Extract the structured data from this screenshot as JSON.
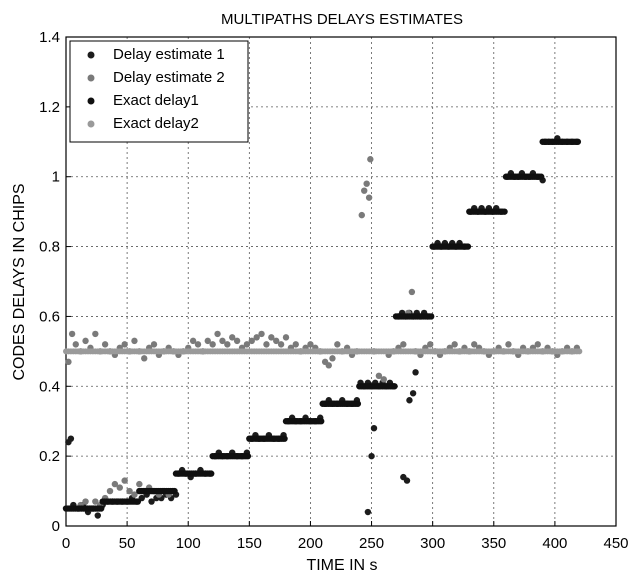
{
  "chart_data": {
    "type": "scatter",
    "title": "MULTIPATHS DELAYS ESTIMATES",
    "xlabel": "TIME IN  s",
    "ylabel": "CODES DELAYS IN CHIPS",
    "xlim": [
      0,
      450
    ],
    "ylim": [
      0,
      1.4
    ],
    "xticks": [
      0,
      50,
      100,
      150,
      200,
      250,
      300,
      350,
      400,
      450
    ],
    "xtick_labels": [
      "0",
      "50",
      "100",
      "150",
      "200",
      "250",
      "300",
      "350",
      "400",
      "450"
    ],
    "yticks": [
      0,
      0.2,
      0.4,
      0.6,
      0.8,
      1.0,
      1.2,
      1.4
    ],
    "ytick_labels": [
      "0",
      "0.2",
      "0.4",
      "0.6",
      "0.8",
      "1",
      "1.2",
      "1.4"
    ],
    "grid": true,
    "legend_position": "top-left",
    "series": [
      {
        "name": "Delay estimate 1",
        "color": "#1c1c1c",
        "points": [
          [
            2,
            0.24
          ],
          [
            4,
            0.25
          ],
          [
            6,
            0.06
          ],
          [
            10,
            0.05
          ],
          [
            14,
            0.06
          ],
          [
            18,
            0.04
          ],
          [
            22,
            0.05
          ],
          [
            26,
            0.03
          ],
          [
            30,
            0.06
          ],
          [
            34,
            0.07
          ],
          [
            38,
            0.07
          ],
          [
            42,
            0.07
          ],
          [
            46,
            0.07
          ],
          [
            50,
            0.07
          ],
          [
            54,
            0.08
          ],
          [
            58,
            0.07
          ],
          [
            62,
            0.08
          ],
          [
            66,
            0.09
          ],
          [
            70,
            0.07
          ],
          [
            74,
            0.08
          ],
          [
            78,
            0.08
          ],
          [
            82,
            0.09
          ],
          [
            86,
            0.08
          ],
          [
            90,
            0.09
          ],
          [
            92,
            0.15
          ],
          [
            95,
            0.16
          ],
          [
            98,
            0.15
          ],
          [
            102,
            0.14
          ],
          [
            106,
            0.15
          ],
          [
            110,
            0.16
          ],
          [
            114,
            0.15
          ],
          [
            118,
            0.15
          ],
          [
            122,
            0.2
          ],
          [
            125,
            0.21
          ],
          [
            128,
            0.2
          ],
          [
            132,
            0.2
          ],
          [
            136,
            0.21
          ],
          [
            140,
            0.2
          ],
          [
            144,
            0.2
          ],
          [
            148,
            0.21
          ],
          [
            152,
            0.25
          ],
          [
            155,
            0.26
          ],
          [
            158,
            0.25
          ],
          [
            162,
            0.25
          ],
          [
            166,
            0.26
          ],
          [
            170,
            0.25
          ],
          [
            174,
            0.25
          ],
          [
            178,
            0.26
          ],
          [
            182,
            0.3
          ],
          [
            185,
            0.31
          ],
          [
            188,
            0.3
          ],
          [
            192,
            0.3
          ],
          [
            196,
            0.31
          ],
          [
            200,
            0.3
          ],
          [
            204,
            0.3
          ],
          [
            208,
            0.31
          ],
          [
            212,
            0.35
          ],
          [
            215,
            0.36
          ],
          [
            218,
            0.35
          ],
          [
            222,
            0.35
          ],
          [
            226,
            0.36
          ],
          [
            230,
            0.35
          ],
          [
            234,
            0.35
          ],
          [
            238,
            0.36
          ],
          [
            241,
            0.41
          ],
          [
            244,
            0.4
          ],
          [
            247,
            0.41
          ],
          [
            250,
            0.4
          ],
          [
            253,
            0.41
          ],
          [
            256,
            0.4
          ],
          [
            259,
            0.41
          ],
          [
            262,
            0.4
          ],
          [
            265,
            0.41
          ],
          [
            268,
            0.4
          ],
          [
            272,
            0.6
          ],
          [
            275,
            0.61
          ],
          [
            278,
            0.6
          ],
          [
            281,
            0.61
          ],
          [
            284,
            0.6
          ],
          [
            287,
            0.61
          ],
          [
            290,
            0.6
          ],
          [
            293,
            0.61
          ],
          [
            296,
            0.6
          ],
          [
            301,
            0.8
          ],
          [
            304,
            0.81
          ],
          [
            307,
            0.8
          ],
          [
            310,
            0.81
          ],
          [
            313,
            0.8
          ],
          [
            316,
            0.81
          ],
          [
            319,
            0.8
          ],
          [
            322,
            0.81
          ],
          [
            326,
            0.8
          ],
          [
            331,
            0.9
          ],
          [
            334,
            0.91
          ],
          [
            337,
            0.9
          ],
          [
            340,
            0.91
          ],
          [
            343,
            0.9
          ],
          [
            346,
            0.91
          ],
          [
            349,
            0.9
          ],
          [
            352,
            0.91
          ],
          [
            356,
            0.9
          ],
          [
            361,
            1.0
          ],
          [
            364,
            1.01
          ],
          [
            367,
            1.0
          ],
          [
            370,
            1.0
          ],
          [
            373,
            1.01
          ],
          [
            376,
            1.0
          ],
          [
            379,
            1.0
          ],
          [
            382,
            1.01
          ],
          [
            386,
            1.0
          ],
          [
            390,
            0.99
          ],
          [
            392,
            1.1
          ],
          [
            395,
            1.1
          ],
          [
            398,
            1.1
          ],
          [
            402,
            1.11
          ],
          [
            406,
            1.1
          ],
          [
            410,
            1.1
          ],
          [
            414,
            1.1
          ],
          [
            418,
            1.1
          ],
          [
            247,
            0.04
          ],
          [
            250,
            0.2
          ],
          [
            252,
            0.28
          ],
          [
            276,
            0.14
          ],
          [
            279,
            0.13
          ],
          [
            281,
            0.36
          ],
          [
            284,
            0.38
          ],
          [
            286,
            0.44
          ]
        ]
      },
      {
        "name": "Delay estimate 2",
        "color": "#7a7a7a",
        "points": [
          [
            2,
            0.47
          ],
          [
            5,
            0.55
          ],
          [
            8,
            0.52
          ],
          [
            12,
            0.5
          ],
          [
            16,
            0.53
          ],
          [
            20,
            0.51
          ],
          [
            24,
            0.55
          ],
          [
            28,
            0.5
          ],
          [
            32,
            0.52
          ],
          [
            36,
            0.5
          ],
          [
            40,
            0.49
          ],
          [
            44,
            0.51
          ],
          [
            48,
            0.52
          ],
          [
            52,
            0.5
          ],
          [
            56,
            0.53
          ],
          [
            60,
            0.5
          ],
          [
            64,
            0.48
          ],
          [
            68,
            0.51
          ],
          [
            72,
            0.52
          ],
          [
            76,
            0.49
          ],
          [
            80,
            0.5
          ],
          [
            84,
            0.51
          ],
          [
            88,
            0.5
          ],
          [
            92,
            0.49
          ],
          [
            96,
            0.5
          ],
          [
            100,
            0.51
          ],
          [
            104,
            0.53
          ],
          [
            108,
            0.52
          ],
          [
            112,
            0.5
          ],
          [
            116,
            0.53
          ],
          [
            120,
            0.52
          ],
          [
            124,
            0.55
          ],
          [
            128,
            0.53
          ],
          [
            132,
            0.52
          ],
          [
            136,
            0.54
          ],
          [
            140,
            0.53
          ],
          [
            144,
            0.51
          ],
          [
            148,
            0.52
          ],
          [
            152,
            0.53
          ],
          [
            156,
            0.54
          ],
          [
            160,
            0.55
          ],
          [
            164,
            0.52
          ],
          [
            168,
            0.54
          ],
          [
            172,
            0.53
          ],
          [
            176,
            0.52
          ],
          [
            180,
            0.54
          ],
          [
            184,
            0.51
          ],
          [
            188,
            0.52
          ],
          [
            192,
            0.5
          ],
          [
            196,
            0.51
          ],
          [
            200,
            0.52
          ],
          [
            204,
            0.51
          ],
          [
            208,
            0.5
          ],
          [
            212,
            0.47
          ],
          [
            215,
            0.46
          ],
          [
            218,
            0.48
          ],
          [
            222,
            0.52
          ],
          [
            226,
            0.5
          ],
          [
            230,
            0.51
          ],
          [
            234,
            0.49
          ],
          [
            238,
            0.5
          ],
          [
            242,
            0.89
          ],
          [
            244,
            0.96
          ],
          [
            246,
            0.98
          ],
          [
            248,
            0.94
          ],
          [
            249,
            1.05
          ],
          [
            252,
            0.5
          ],
          [
            256,
            0.43
          ],
          [
            260,
            0.42
          ],
          [
            264,
            0.49
          ],
          [
            268,
            0.5
          ],
          [
            272,
            0.51
          ],
          [
            276,
            0.52
          ],
          [
            280,
            0.61
          ],
          [
            283,
            0.67
          ],
          [
            286,
            0.5
          ],
          [
            290,
            0.49
          ],
          [
            294,
            0.51
          ],
          [
            298,
            0.52
          ],
          [
            302,
            0.5
          ],
          [
            306,
            0.49
          ],
          [
            310,
            0.5
          ],
          [
            314,
            0.51
          ],
          [
            318,
            0.52
          ],
          [
            322,
            0.5
          ],
          [
            326,
            0.51
          ],
          [
            330,
            0.5
          ],
          [
            334,
            0.52
          ],
          [
            338,
            0.51
          ],
          [
            342,
            0.5
          ],
          [
            346,
            0.49
          ],
          [
            350,
            0.5
          ],
          [
            354,
            0.51
          ],
          [
            358,
            0.5
          ],
          [
            362,
            0.52
          ],
          [
            366,
            0.5
          ],
          [
            370,
            0.49
          ],
          [
            374,
            0.51
          ],
          [
            378,
            0.5
          ],
          [
            382,
            0.51
          ],
          [
            386,
            0.52
          ],
          [
            390,
            0.5
          ],
          [
            394,
            0.51
          ],
          [
            398,
            0.5
          ],
          [
            402,
            0.49
          ],
          [
            406,
            0.5
          ],
          [
            410,
            0.51
          ],
          [
            414,
            0.5
          ],
          [
            418,
            0.51
          ],
          [
            12,
            0.06
          ],
          [
            16,
            0.07
          ],
          [
            20,
            0.05
          ],
          [
            24,
            0.07
          ],
          [
            28,
            0.06
          ],
          [
            32,
            0.08
          ],
          [
            36,
            0.1
          ],
          [
            40,
            0.12
          ],
          [
            44,
            0.11
          ],
          [
            48,
            0.13
          ],
          [
            52,
            0.1
          ],
          [
            56,
            0.09
          ],
          [
            60,
            0.12
          ],
          [
            64,
            0.1
          ],
          [
            68,
            0.11
          ],
          [
            72,
            0.1
          ],
          [
            76,
            0.09
          ],
          [
            80,
            0.1
          ],
          [
            84,
            0.09
          ],
          [
            88,
            0.1
          ]
        ]
      },
      {
        "name": "Exact delay1",
        "color": "#101010",
        "points": [
          [
            0,
            0.05
          ],
          [
            30,
            0.05
          ],
          [
            30,
            0.07
          ],
          [
            60,
            0.07
          ],
          [
            60,
            0.1
          ],
          [
            90,
            0.1
          ],
          [
            90,
            0.15
          ],
          [
            120,
            0.15
          ],
          [
            120,
            0.2
          ],
          [
            150,
            0.2
          ],
          [
            150,
            0.25
          ],
          [
            180,
            0.25
          ],
          [
            180,
            0.3
          ],
          [
            210,
            0.3
          ],
          [
            210,
            0.35
          ],
          [
            240,
            0.35
          ],
          [
            240,
            0.4
          ],
          [
            270,
            0.4
          ],
          [
            270,
            0.6
          ],
          [
            300,
            0.6
          ],
          [
            300,
            0.8
          ],
          [
            330,
            0.8
          ],
          [
            330,
            0.9
          ],
          [
            360,
            0.9
          ],
          [
            360,
            1.0
          ],
          [
            390,
            1.0
          ],
          [
            390,
            1.1
          ],
          [
            420,
            1.1
          ]
        ]
      },
      {
        "name": "Exact delay2",
        "color": "#9a9a9a",
        "points": [
          [
            0,
            0.5
          ],
          [
            420,
            0.5
          ]
        ]
      }
    ]
  }
}
